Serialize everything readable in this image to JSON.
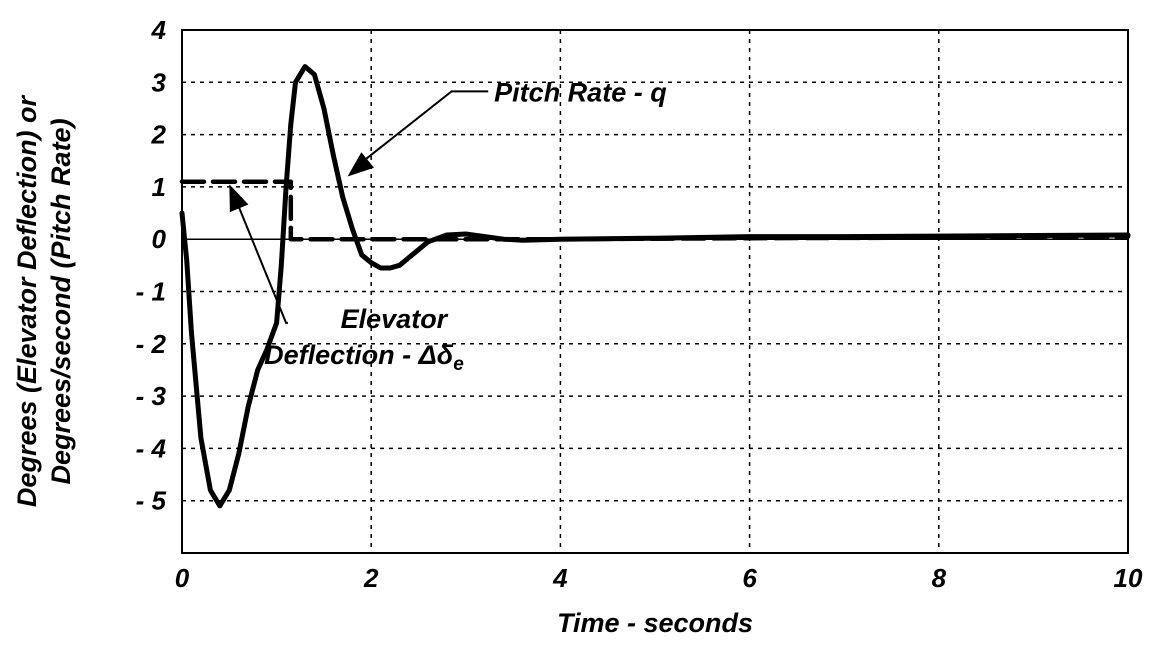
{
  "chart_data": {
    "type": "line",
    "xlabel": "Time - seconds",
    "ylabel_line1": "Degrees (Elevator Deflection) or",
    "ylabel_line2": "Degrees/second (Pitch Rate)",
    "xlim": [
      0,
      10
    ],
    "ylim": [
      -6,
      4
    ],
    "x_ticks": [
      0,
      2,
      4,
      6,
      8,
      10
    ],
    "x_tick_labels": [
      "0",
      "2",
      "4",
      "6",
      "8",
      "10"
    ],
    "y_ticks": [
      4,
      3,
      2,
      1,
      0,
      -1,
      -2,
      -3,
      -4,
      -5
    ],
    "y_tick_labels": [
      "4",
      "3",
      "2",
      "1",
      "0",
      "- 1",
      "- 2",
      "- 3",
      "- 4",
      "- 5"
    ],
    "grid": true,
    "series": [
      {
        "name": "Pitch Rate - q",
        "style": "solid",
        "x": [
          0,
          0.05,
          0.1,
          0.2,
          0.3,
          0.4,
          0.5,
          0.6,
          0.7,
          0.8,
          0.9,
          1.0,
          1.05,
          1.1,
          1.15,
          1.2,
          1.3,
          1.4,
          1.5,
          1.6,
          1.7,
          1.8,
          1.9,
          2.0,
          2.1,
          2.2,
          2.3,
          2.4,
          2.5,
          2.6,
          2.8,
          3.0,
          3.2,
          3.4,
          3.6,
          4.0,
          5.0,
          6.0,
          7.0,
          8.0,
          9.0,
          10.0
        ],
        "values": [
          0.5,
          -0.4,
          -1.8,
          -3.8,
          -4.8,
          -5.1,
          -4.8,
          -4.1,
          -3.2,
          -2.5,
          -2.1,
          -1.6,
          -0.5,
          1.0,
          2.2,
          3.0,
          3.3,
          3.15,
          2.5,
          1.6,
          0.8,
          0.2,
          -0.3,
          -0.45,
          -0.55,
          -0.55,
          -0.5,
          -0.35,
          -0.2,
          -0.05,
          0.08,
          0.1,
          0.05,
          0.0,
          -0.02,
          0.0,
          0.02,
          0.05,
          0.05,
          0.06,
          0.07,
          0.08
        ]
      },
      {
        "name": "Elevator Deflection - Δδe",
        "style": "dashed",
        "x": [
          0,
          1.15,
          1.15,
          2.0,
          4.0,
          6.0,
          8.0,
          10.0
        ],
        "values": [
          1.1,
          1.1,
          0.0,
          0.0,
          0.0,
          0.02,
          0.03,
          0.05
        ]
      }
    ],
    "annotations": [
      {
        "label": "Pitch Rate - q",
        "text_x": 3.3,
        "text_y": 2.75,
        "knee_x": 2.85,
        "knee_y": 2.75,
        "target_x": 1.75,
        "target_y": 1.2
      },
      {
        "label_line1": "Elevator",
        "label_line2": "Deflection - ",
        "label_symbol": "Δδ",
        "label_subscript": "e",
        "text_x": 2.05,
        "text_y": -1.7,
        "knee_x": 1.1,
        "knee_y": -1.6,
        "target_x": 0.5,
        "target_y": 1.05
      }
    ]
  }
}
